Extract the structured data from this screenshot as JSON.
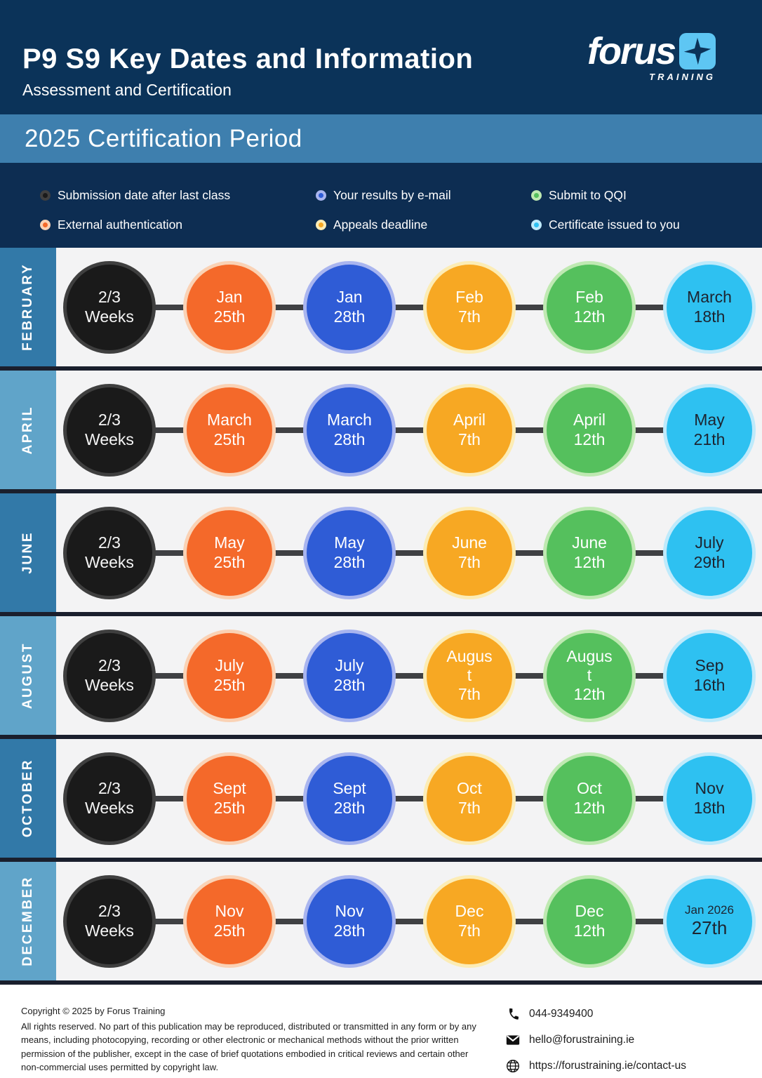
{
  "header": {
    "title": "P9 S9 Key Dates and Information",
    "subtitle": "Assessment and Certification",
    "logo_word": "forus",
    "logo_sub": "TRAINING"
  },
  "band": {
    "title": "2025 Certification Period"
  },
  "colors": {
    "header_navy": "#0b3359",
    "band_blue": "#3e7fae",
    "legend_navy": "#0d2d52",
    "row_bg": "#f3f3f4",
    "separator": "#1a1f2d",
    "sidebar_dark": "#3279a8",
    "sidebar_light": "#60a4c9",
    "connector": "#3f4043",
    "node_styles": {
      "black": {
        "fill": "#1a1a1a",
        "ring": "#3f3f3f",
        "text": "#f5f5f5"
      },
      "orange": {
        "fill": "#f4692a",
        "ring": "#fad2b5",
        "text": "#ffffff"
      },
      "blue": {
        "fill": "#2f5cd6",
        "ring": "#a9b5ef",
        "text": "#ffffff"
      },
      "amber": {
        "fill": "#f7a823",
        "ring": "#fcecb5",
        "text": "#ffffff"
      },
      "green": {
        "fill": "#55c05d",
        "ring": "#bfe9b2",
        "text": "#ffffff"
      },
      "sky": {
        "fill": "#2ec1f1",
        "ring": "#bfeafb",
        "text": "#1d2430"
      }
    }
  },
  "legend": {
    "items": [
      {
        "key": "black",
        "label": "Submission date after last class"
      },
      {
        "key": "orange",
        "label": "External authentication"
      },
      {
        "key": "blue",
        "label": "Your results by e-mail"
      },
      {
        "key": "amber",
        "label": "Appeals deadline"
      },
      {
        "key": "green",
        "label": "Submit to QQI"
      },
      {
        "key": "sky",
        "label": "Certificate issued to you"
      }
    ]
  },
  "timeline": {
    "rows": [
      {
        "month": "FEBRUARY",
        "shade": "dark",
        "nodes": [
          {
            "key": "black",
            "lines": [
              "2/3",
              "Weeks"
            ]
          },
          {
            "key": "orange",
            "lines": [
              "Jan",
              "25th"
            ]
          },
          {
            "key": "blue",
            "lines": [
              "Jan",
              "28th"
            ]
          },
          {
            "key": "amber",
            "lines": [
              "Feb",
              "7th"
            ]
          },
          {
            "key": "green",
            "lines": [
              "Feb",
              "12th"
            ]
          },
          {
            "key": "sky",
            "lines": [
              "March",
              "18th"
            ]
          }
        ]
      },
      {
        "month": "APRIL",
        "shade": "light",
        "nodes": [
          {
            "key": "black",
            "lines": [
              "2/3",
              "Weeks"
            ]
          },
          {
            "key": "orange",
            "lines": [
              "March",
              "25th"
            ]
          },
          {
            "key": "blue",
            "lines": [
              "March",
              "28th"
            ]
          },
          {
            "key": "amber",
            "lines": [
              "April",
              "7th"
            ]
          },
          {
            "key": "green",
            "lines": [
              "April",
              "12th"
            ]
          },
          {
            "key": "sky",
            "lines": [
              "May",
              "21th"
            ]
          }
        ]
      },
      {
        "month": "JUNE",
        "shade": "dark",
        "nodes": [
          {
            "key": "black",
            "lines": [
              "2/3",
              "Weeks"
            ]
          },
          {
            "key": "orange",
            "lines": [
              "May",
              "25th"
            ]
          },
          {
            "key": "blue",
            "lines": [
              "May",
              "28th"
            ]
          },
          {
            "key": "amber",
            "lines": [
              "June",
              "7th"
            ]
          },
          {
            "key": "green",
            "lines": [
              "June",
              "12th"
            ]
          },
          {
            "key": "sky",
            "lines": [
              "July",
              "29th"
            ]
          }
        ]
      },
      {
        "month": "AUGUST",
        "shade": "light",
        "nodes": [
          {
            "key": "black",
            "lines": [
              "2/3",
              "Weeks"
            ]
          },
          {
            "key": "orange",
            "lines": [
              "July",
              "25th"
            ]
          },
          {
            "key": "blue",
            "lines": [
              "July",
              "28th"
            ]
          },
          {
            "key": "amber",
            "lines": [
              "Augus",
              "t",
              "7th"
            ]
          },
          {
            "key": "green",
            "lines": [
              "Augus",
              "t",
              "12th"
            ]
          },
          {
            "key": "sky",
            "lines": [
              "Sep",
              "16th"
            ]
          }
        ]
      },
      {
        "month": "OCTOBER",
        "shade": "dark",
        "nodes": [
          {
            "key": "black",
            "lines": [
              "2/3",
              "Weeks"
            ]
          },
          {
            "key": "orange",
            "lines": [
              "Sept",
              "25th"
            ]
          },
          {
            "key": "blue",
            "lines": [
              "Sept",
              "28th"
            ]
          },
          {
            "key": "amber",
            "lines": [
              "Oct",
              "7th"
            ]
          },
          {
            "key": "green",
            "lines": [
              "Oct",
              "12th"
            ]
          },
          {
            "key": "sky",
            "lines": [
              "Nov",
              "18th"
            ]
          }
        ]
      },
      {
        "month": "DECEMBER",
        "shade": "light",
        "nodes": [
          {
            "key": "black",
            "lines": [
              "2/3",
              "Weeks"
            ]
          },
          {
            "key": "orange",
            "lines": [
              "Nov",
              "25th"
            ]
          },
          {
            "key": "blue",
            "lines": [
              "Nov",
              "28th"
            ]
          },
          {
            "key": "amber",
            "lines": [
              "Dec",
              "7th"
            ]
          },
          {
            "key": "green",
            "lines": [
              "Dec",
              "12th"
            ]
          },
          {
            "key": "sky",
            "lines": [
              "Jan 2026",
              "27th"
            ],
            "small_first": true
          }
        ]
      }
    ]
  },
  "footer": {
    "copyright_line": "Copyright © 2025 by Forus Training",
    "rights_text": "All rights reserved. No part of this publication may be reproduced, distributed or transmitted in any form or by any means, including photocopying, recording or other electronic or mechanical methods without the prior written permission of the publisher, except in the case of brief quotations embodied in critical reviews and certain other non-commercial uses permitted by copyright law.",
    "contacts": [
      {
        "icon": "phone-icon",
        "text": "044-9349400"
      },
      {
        "icon": "mail-icon",
        "text": "hello@forustraining.ie"
      },
      {
        "icon": "globe-icon",
        "text": "https://forustraining.ie/contact-us"
      }
    ]
  }
}
